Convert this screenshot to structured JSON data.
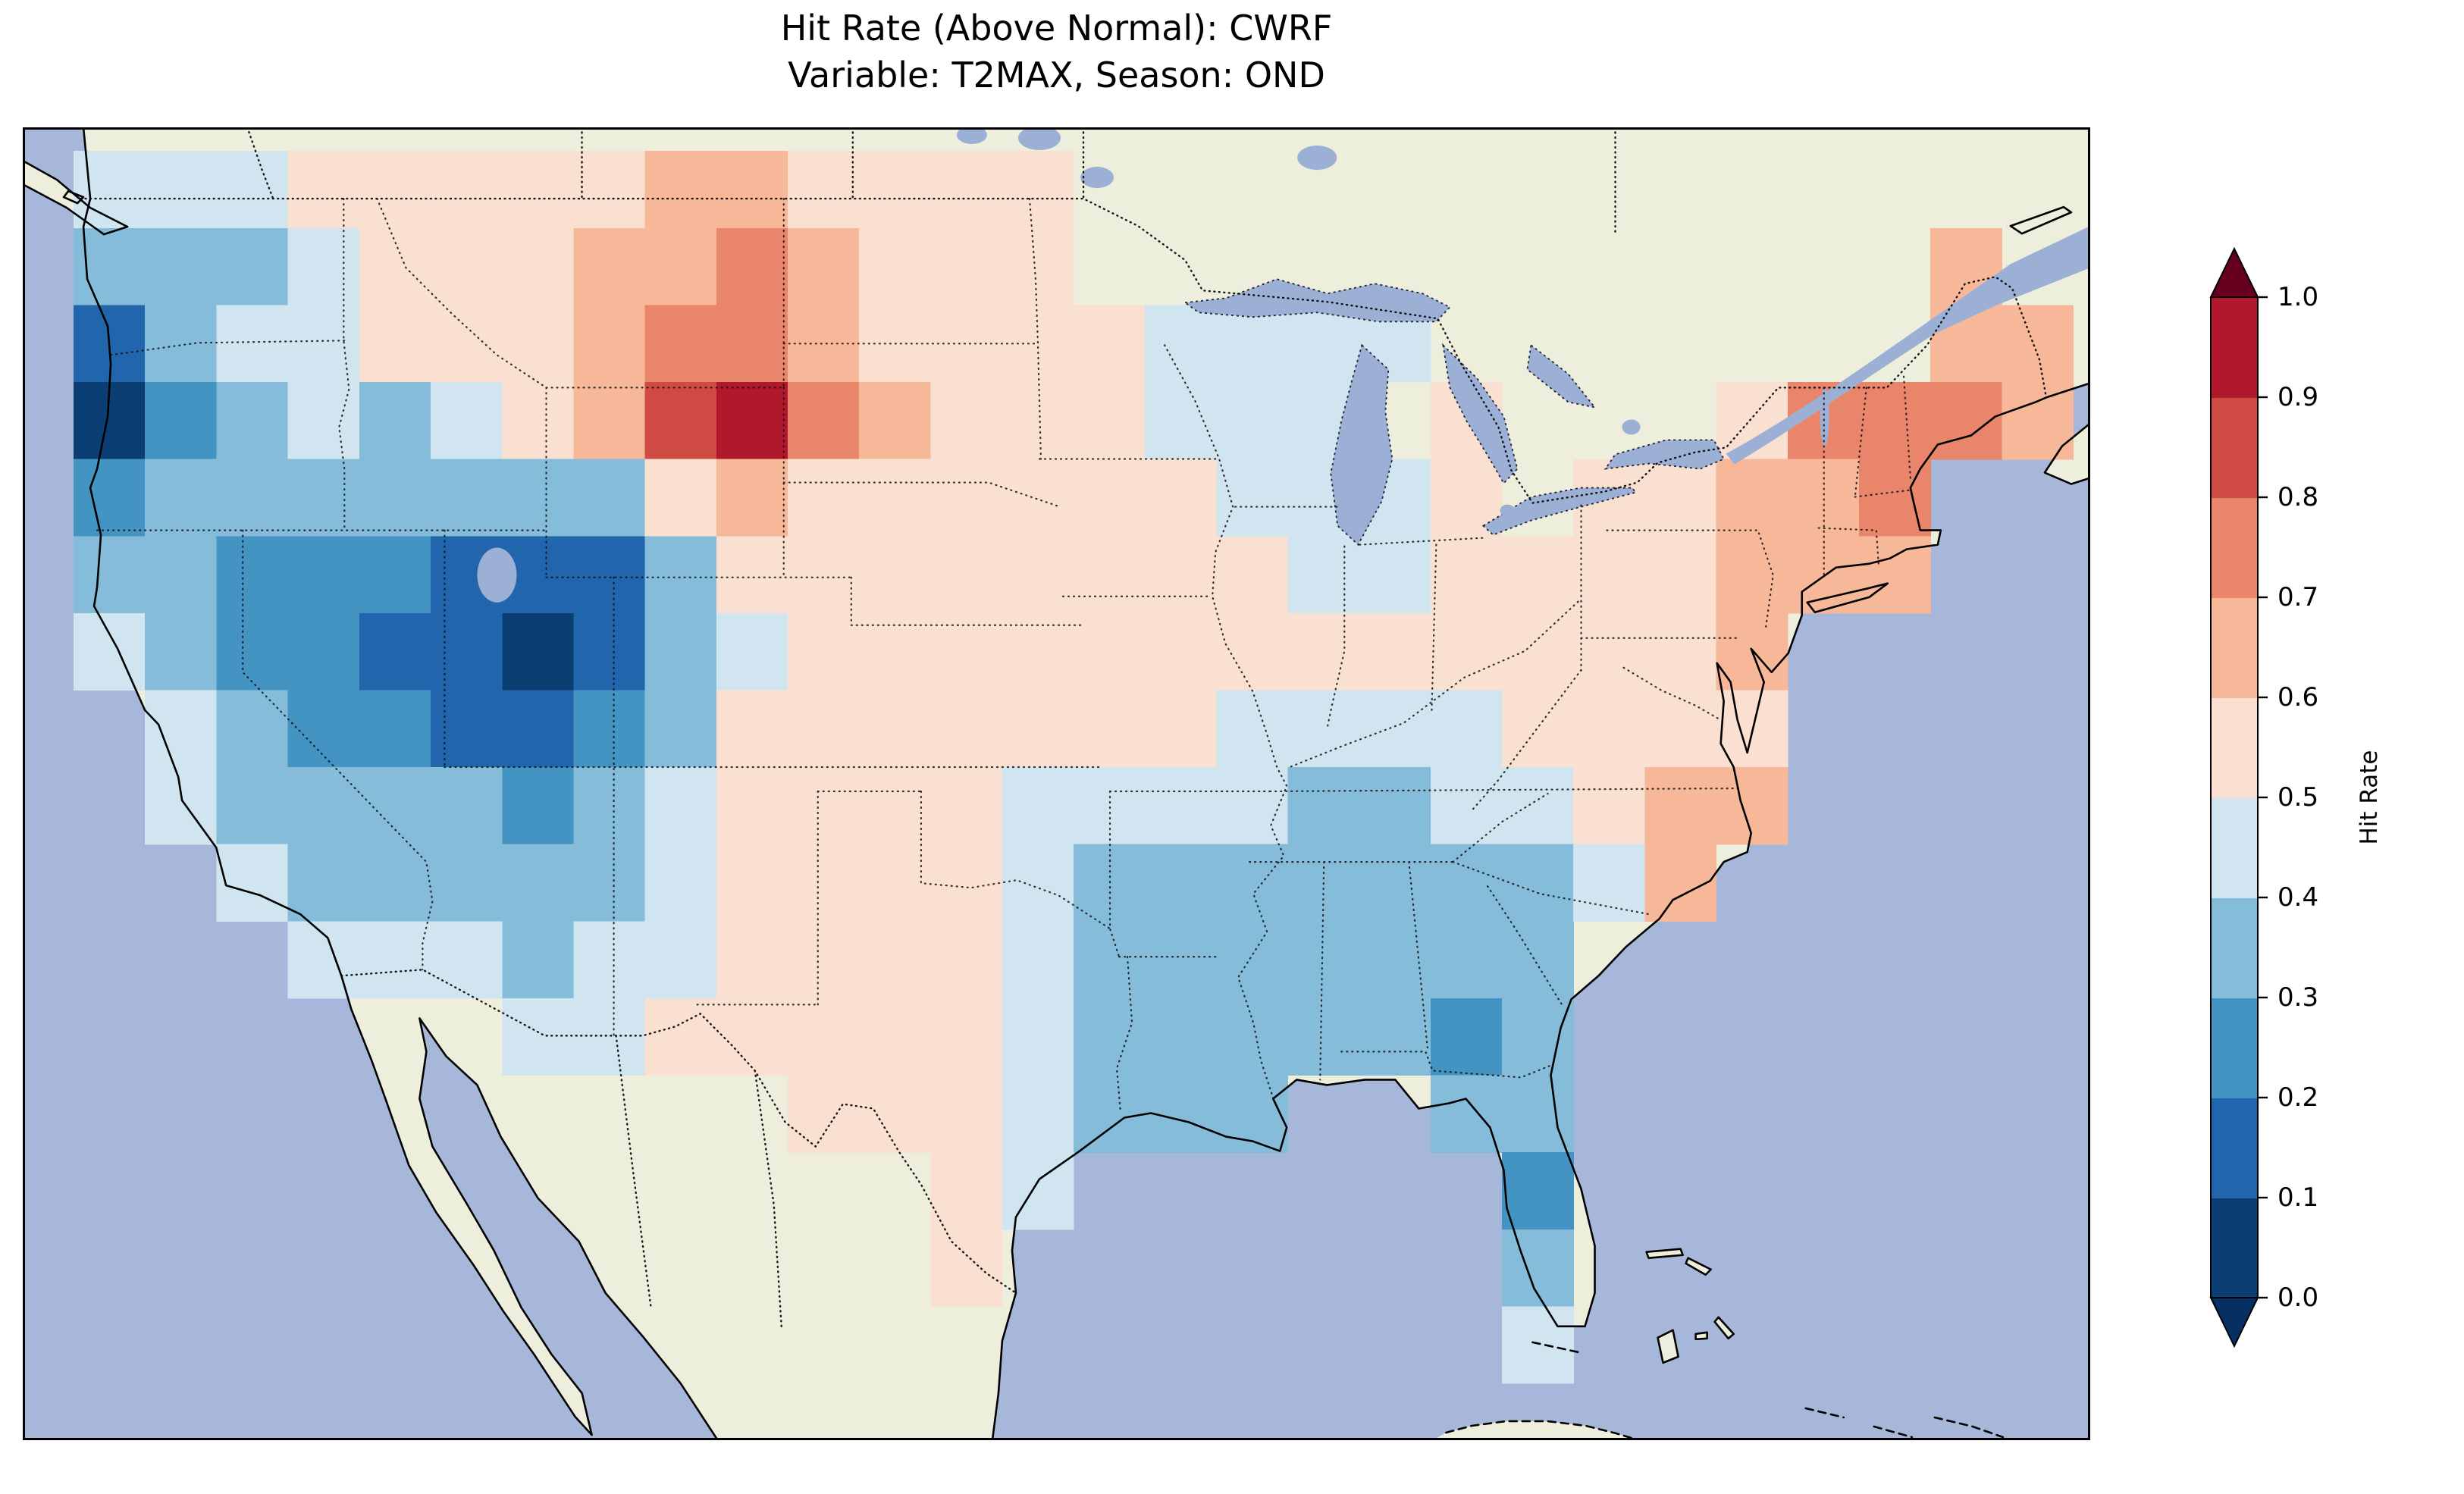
{
  "figure": {
    "title_line1": "Hit Rate (Above Normal): CWRF",
    "title_line2": "Variable: T2MAX, Season: OND"
  },
  "map": {
    "ocean_color": "#a7b7da",
    "land_color": "#eeeedd",
    "lake_color": "#9cb0d6",
    "coastline_color": "#000000"
  },
  "chart_data": {
    "type": "heatmap",
    "title": "Hit Rate (Above Normal): CWRF",
    "subtitle": "Variable: T2MAX, Season: OND",
    "metric": "Hit Rate (Above Normal)",
    "model": "CWRF",
    "variable": "T2MAX",
    "season": "OND",
    "projection_extent": {
      "lon": [
        -126.5,
        -65.5
      ],
      "lat": [
        22.8,
        50.5
      ]
    },
    "grid": {
      "lon_range": [
        -125,
        -66
      ],
      "lat_range": [
        24,
        50
      ],
      "shape": [
        16,
        28
      ],
      "note": "values row-major from north to south; null = outside CONUS mask"
    },
    "values": [
      [
        0.45,
        0.4,
        0.4,
        0.5,
        0.55,
        0.55,
        0.55,
        0.55,
        0.6,
        0.6,
        0.55,
        0.55,
        0.5,
        0.55,
        null,
        null,
        null,
        null,
        null,
        null,
        null,
        null,
        null,
        null,
        null,
        null,
        null,
        null
      ],
      [
        0.35,
        0.3,
        0.35,
        0.45,
        0.5,
        0.55,
        0.55,
        0.6,
        0.65,
        0.7,
        0.6,
        0.55,
        0.5,
        0.5,
        null,
        null,
        null,
        null,
        null,
        null,
        null,
        null,
        null,
        null,
        null,
        null,
        0.6,
        null
      ],
      [
        0.15,
        0.3,
        0.4,
        0.45,
        0.5,
        0.5,
        0.55,
        0.6,
        0.7,
        0.75,
        0.6,
        0.55,
        0.5,
        0.5,
        0.5,
        0.45,
        0.4,
        0.45,
        0.45,
        null,
        null,
        null,
        null,
        null,
        null,
        null,
        0.65,
        0.6
      ],
      [
        0.05,
        0.25,
        0.35,
        0.4,
        0.35,
        0.4,
        0.5,
        0.6,
        0.8,
        0.9,
        0.7,
        0.6,
        0.55,
        0.5,
        0.5,
        0.45,
        0.45,
        0.4,
        null,
        0.5,
        null,
        null,
        null,
        0.55,
        0.7,
        0.75,
        0.7,
        0.6
      ],
      [
        0.2,
        0.3,
        0.35,
        0.3,
        0.3,
        0.35,
        0.3,
        0.35,
        0.5,
        0.65,
        0.55,
        0.5,
        0.5,
        0.55,
        0.5,
        0.5,
        0.45,
        0.45,
        0.45,
        0.5,
        null,
        0.55,
        0.55,
        0.6,
        0.65,
        0.7,
        null,
        null
      ],
      [
        0.3,
        0.35,
        0.25,
        0.2,
        0.2,
        0.15,
        0.1,
        0.15,
        0.3,
        0.5,
        0.55,
        0.5,
        0.5,
        0.5,
        0.5,
        0.5,
        0.5,
        0.45,
        0.45,
        0.5,
        0.5,
        0.55,
        0.55,
        0.6,
        0.6,
        0.6,
        null,
        null
      ],
      [
        0.4,
        0.3,
        0.25,
        0.2,
        0.15,
        0.1,
        0.05,
        0.1,
        0.3,
        0.45,
        0.55,
        0.55,
        0.55,
        0.55,
        0.55,
        0.5,
        0.5,
        0.5,
        0.5,
        0.5,
        0.5,
        0.5,
        0.55,
        0.6,
        null,
        null,
        null,
        null
      ],
      [
        null,
        0.45,
        0.35,
        0.25,
        0.2,
        0.15,
        0.1,
        0.2,
        0.35,
        0.5,
        0.55,
        0.55,
        0.55,
        0.5,
        0.5,
        0.5,
        0.45,
        0.45,
        0.45,
        0.45,
        0.5,
        0.5,
        0.55,
        0.55,
        null,
        null,
        null,
        null
      ],
      [
        null,
        0.45,
        0.35,
        0.3,
        0.3,
        0.3,
        0.25,
        0.3,
        0.4,
        0.5,
        0.55,
        0.55,
        0.5,
        0.45,
        0.4,
        0.4,
        0.4,
        0.35,
        0.35,
        0.4,
        0.45,
        0.5,
        0.65,
        0.6,
        null,
        null,
        null,
        null
      ],
      [
        null,
        null,
        0.4,
        0.35,
        0.35,
        0.35,
        0.3,
        0.35,
        0.45,
        0.5,
        0.5,
        0.55,
        0.5,
        0.45,
        0.35,
        0.3,
        0.3,
        0.3,
        0.3,
        0.3,
        0.35,
        0.45,
        0.6,
        null,
        null,
        null,
        null,
        null
      ],
      [
        null,
        null,
        null,
        0.4,
        0.4,
        0.4,
        0.35,
        0.4,
        0.45,
        0.5,
        0.55,
        0.55,
        0.5,
        0.4,
        0.35,
        0.3,
        0.3,
        0.3,
        0.3,
        0.3,
        0.35,
        null,
        null,
        null,
        null,
        null,
        null,
        null
      ],
      [
        null,
        null,
        null,
        null,
        null,
        null,
        0.4,
        0.45,
        0.5,
        0.55,
        0.55,
        0.55,
        0.5,
        0.45,
        0.35,
        0.3,
        0.3,
        0.3,
        0.3,
        0.25,
        0.3,
        null,
        null,
        null,
        null,
        null,
        null,
        null
      ],
      [
        null,
        null,
        null,
        null,
        null,
        null,
        null,
        null,
        null,
        null,
        0.55,
        0.55,
        0.5,
        0.45,
        0.35,
        0.3,
        0.3,
        null,
        null,
        0.35,
        0.3,
        null,
        null,
        null,
        null,
        null,
        null,
        null
      ],
      [
        null,
        null,
        null,
        null,
        null,
        null,
        null,
        null,
        null,
        null,
        null,
        null,
        0.5,
        0.45,
        null,
        null,
        null,
        null,
        null,
        null,
        0.25,
        null,
        null,
        null,
        null,
        null,
        null,
        null
      ],
      [
        null,
        null,
        null,
        null,
        null,
        null,
        null,
        null,
        null,
        null,
        null,
        null,
        0.5,
        null,
        null,
        null,
        null,
        null,
        null,
        null,
        0.3,
        null,
        null,
        null,
        null,
        null,
        null,
        null
      ],
      [
        null,
        null,
        null,
        null,
        null,
        null,
        null,
        null,
        null,
        null,
        null,
        null,
        null,
        null,
        null,
        null,
        null,
        null,
        null,
        null,
        0.45,
        null,
        null,
        null,
        null,
        null,
        null,
        null
      ]
    ],
    "colormap": {
      "name": "RdBu_r",
      "under": "#053061",
      "over": "#67001f",
      "bands": [
        "#0b3e73",
        "#2166ac",
        "#4393c3",
        "#85bcd9",
        "#d1e5f0",
        "#f9e0d1",
        "#f7b89a",
        "#e8856b",
        "#cf4b44",
        "#b2182b"
      ]
    },
    "colorbar": {
      "label": "Hit Rate",
      "ticks": [
        0.0,
        0.1,
        0.2,
        0.3,
        0.4,
        0.5,
        0.6,
        0.7,
        0.8,
        0.9,
        1.0
      ],
      "orientation": "vertical",
      "extend": "both"
    }
  }
}
